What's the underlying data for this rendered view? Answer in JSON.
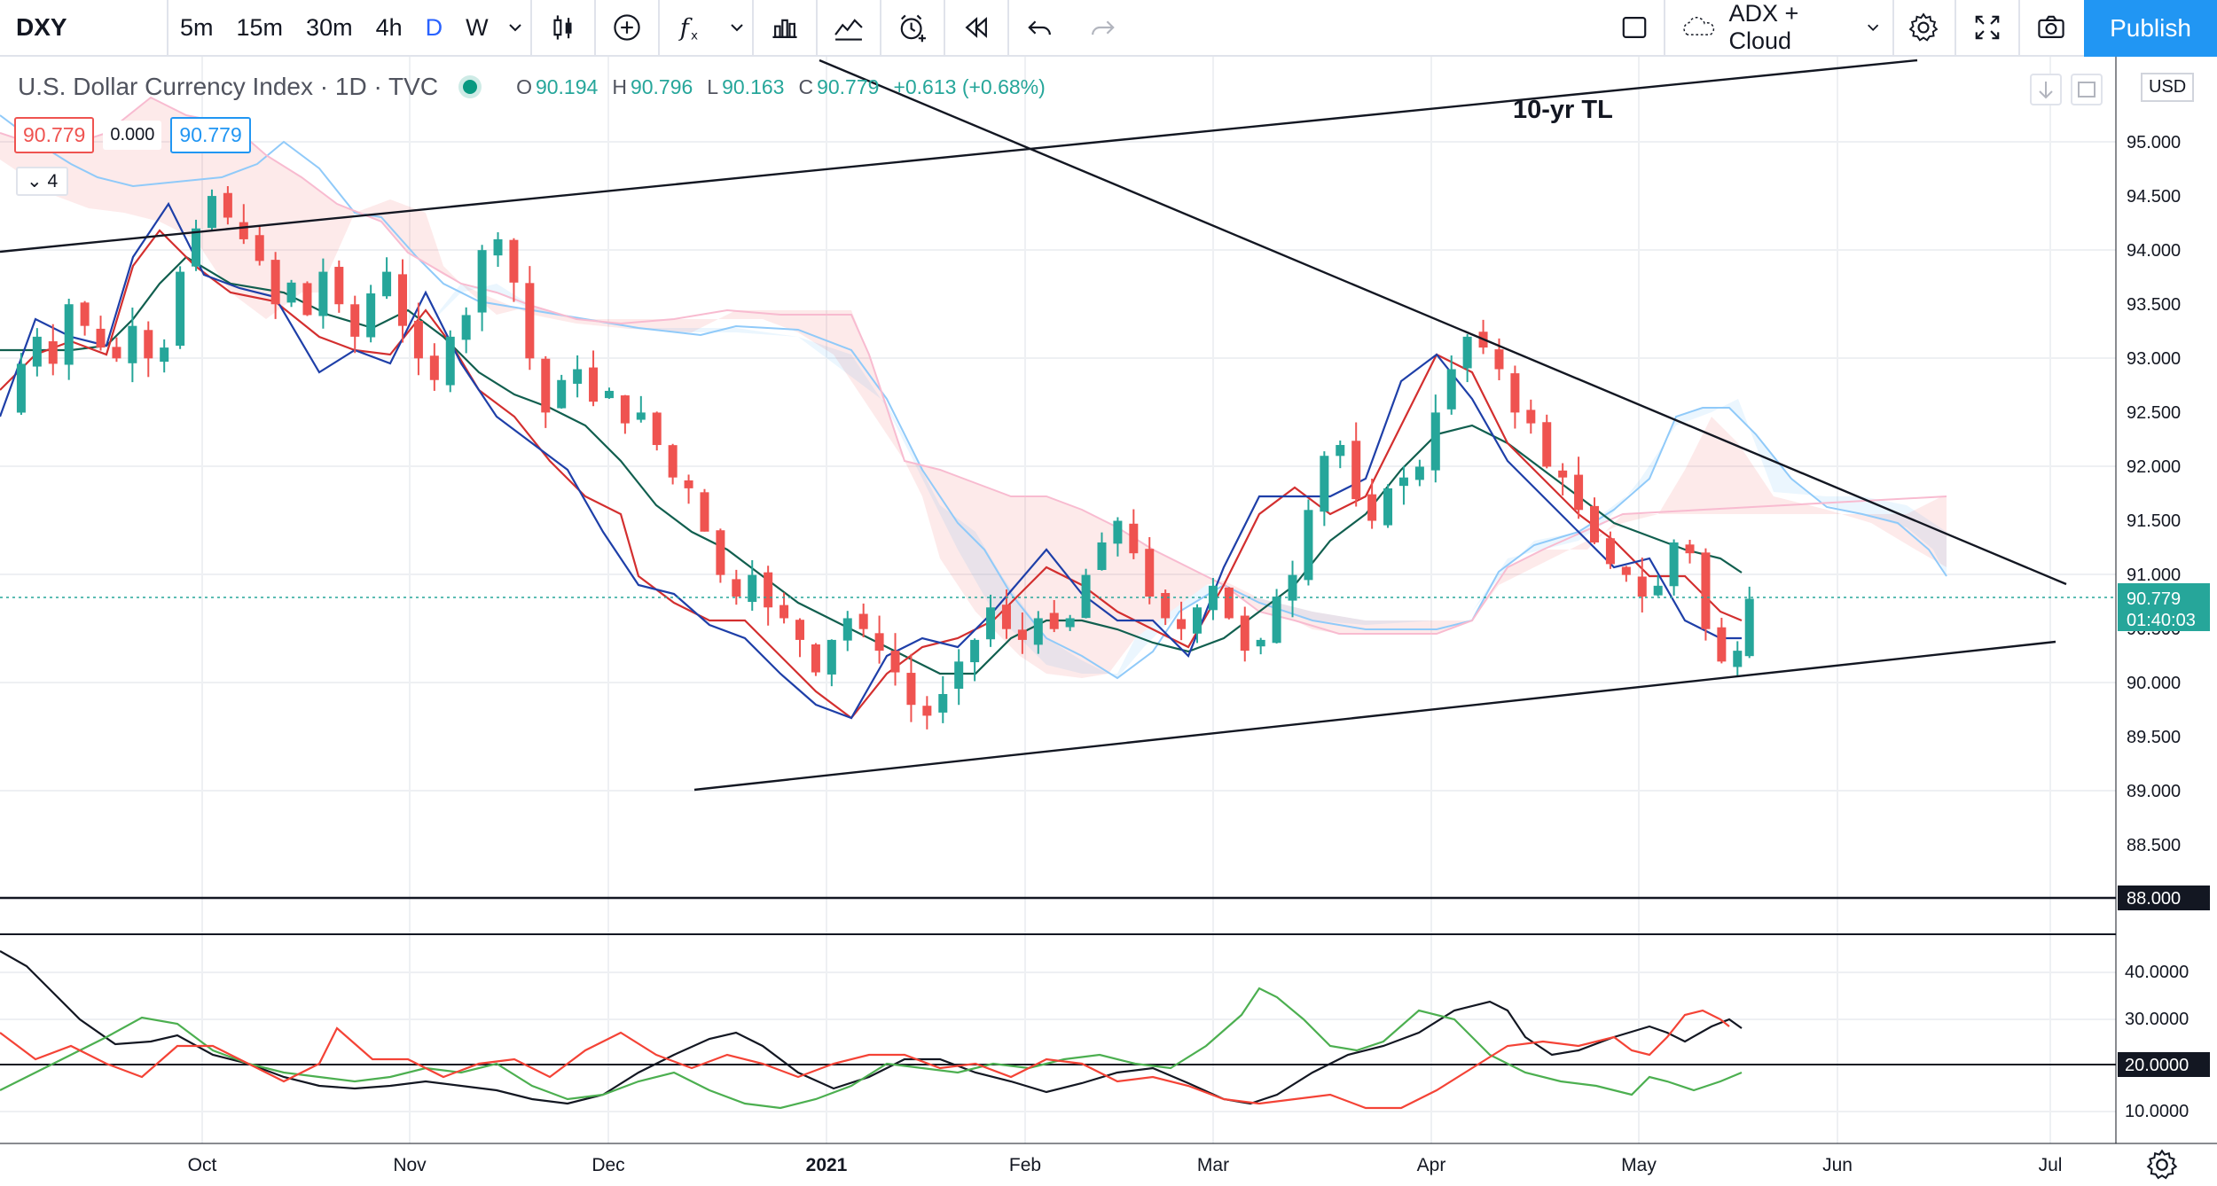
{
  "toolbar": {
    "symbol": "DXY",
    "intervals": [
      "5m",
      "15m",
      "30m",
      "4h",
      "D",
      "W"
    ],
    "active_interval": "D",
    "indicator_template": "ADX + Cloud",
    "publish_label": "Publish"
  },
  "legend": {
    "title": "U.S. Dollar Currency Index · 1D · TVC",
    "open_label": "O",
    "open": "90.194",
    "high_label": "H",
    "high": "90.796",
    "low_label": "L",
    "low": "90.163",
    "close_label": "C",
    "close": "90.779",
    "change": "+0.613 (+0.68%)",
    "bid": "90.779",
    "spread": "0.000",
    "ask": "90.779",
    "collapsed_count": "4"
  },
  "annotation_label": "10-yr TL",
  "price_axis": {
    "currency": "USD",
    "ticks": [
      "95.000",
      "94.500",
      "94.000",
      "93.500",
      "93.000",
      "92.500",
      "92.000",
      "91.500",
      "91.000",
      "90.500",
      "90.000",
      "89.500",
      "89.000",
      "88.500"
    ],
    "last_price": "90.779",
    "countdown": "01:40:03",
    "level_88": "88.000"
  },
  "adx_axis": {
    "ticks": [
      "40.0000",
      "30.0000",
      "10.0000"
    ],
    "level_20": "20.0000"
  },
  "time_axis": [
    "Oct",
    "Nov",
    "Dec",
    "2021",
    "Feb",
    "Mar",
    "Apr",
    "May",
    "Jun",
    "Jul"
  ],
  "colors": {
    "up": "#26a69a",
    "down": "#ef5350",
    "accent": "#2962ff",
    "publish": "#2196f3"
  },
  "chart_data": {
    "type": "candlestick",
    "title": "U.S. Dollar Currency Index · 1D · TVC",
    "ylim": [
      88.0,
      95.5
    ],
    "price_points": [
      [
        0,
        92.5
      ],
      [
        8,
        92.95
      ],
      [
        16,
        93.2
      ],
      [
        24,
        92.95
      ],
      [
        32,
        93.5
      ],
      [
        40,
        93.3
      ],
      [
        48,
        93.1
      ],
      [
        56,
        93.0
      ],
      [
        64,
        93.3
      ],
      [
        72,
        93.0
      ],
      [
        80,
        93.1
      ],
      [
        88,
        93.8
      ],
      [
        96,
        94.2
      ],
      [
        104,
        94.5
      ],
      [
        112,
        94.3
      ],
      [
        120,
        94.1
      ],
      [
        128,
        93.9
      ],
      [
        136,
        93.5
      ],
      [
        144,
        93.7
      ],
      [
        152,
        93.4
      ],
      [
        160,
        93.8
      ],
      [
        168,
        93.5
      ],
      [
        176,
        93.2
      ],
      [
        184,
        93.6
      ],
      [
        192,
        93.8
      ],
      [
        200,
        93.3
      ],
      [
        208,
        93.0
      ],
      [
        216,
        92.8
      ],
      [
        224,
        93.2
      ],
      [
        232,
        93.4
      ],
      [
        240,
        94.0
      ],
      [
        248,
        94.1
      ],
      [
        256,
        93.7
      ],
      [
        264,
        93.0
      ],
      [
        272,
        92.5
      ],
      [
        280,
        92.8
      ],
      [
        288,
        92.9
      ],
      [
        296,
        92.6
      ],
      [
        304,
        92.7
      ],
      [
        312,
        92.4
      ],
      [
        320,
        92.5
      ],
      [
        328,
        92.2
      ],
      [
        336,
        91.9
      ],
      [
        344,
        91.8
      ],
      [
        352,
        91.4
      ],
      [
        360,
        91.0
      ],
      [
        368,
        90.8
      ],
      [
        376,
        91.0
      ],
      [
        384,
        90.7
      ],
      [
        392,
        90.6
      ],
      [
        400,
        90.4
      ],
      [
        408,
        90.1
      ],
      [
        416,
        90.4
      ],
      [
        424,
        90.6
      ],
      [
        432,
        90.5
      ],
      [
        440,
        90.3
      ],
      [
        448,
        90.1
      ],
      [
        456,
        89.8
      ],
      [
        464,
        89.7
      ],
      [
        472,
        89.9
      ],
      [
        480,
        90.2
      ],
      [
        488,
        90.4
      ],
      [
        496,
        90.7
      ],
      [
        504,
        90.5
      ],
      [
        512,
        90.4
      ],
      [
        520,
        90.6
      ],
      [
        528,
        90.5
      ],
      [
        536,
        90.6
      ],
      [
        544,
        91.0
      ],
      [
        552,
        91.3
      ],
      [
        560,
        91.5
      ],
      [
        568,
        91.2
      ],
      [
        576,
        90.8
      ],
      [
        584,
        90.6
      ],
      [
        592,
        90.5
      ],
      [
        600,
        90.7
      ],
      [
        608,
        90.9
      ],
      [
        616,
        90.6
      ],
      [
        624,
        90.3
      ],
      [
        632,
        90.4
      ],
      [
        640,
        90.8
      ],
      [
        648,
        91.0
      ],
      [
        656,
        91.6
      ],
      [
        664,
        92.1
      ],
      [
        672,
        92.2
      ],
      [
        680,
        91.7
      ],
      [
        688,
        91.5
      ],
      [
        696,
        91.8
      ],
      [
        704,
        91.9
      ],
      [
        712,
        92.0
      ],
      [
        720,
        92.5
      ],
      [
        728,
        92.9
      ],
      [
        736,
        93.2
      ],
      [
        744,
        93.1
      ],
      [
        752,
        92.9
      ],
      [
        760,
        92.5
      ],
      [
        768,
        92.4
      ],
      [
        776,
        92.0
      ],
      [
        784,
        91.9
      ],
      [
        792,
        91.6
      ],
      [
        800,
        91.3
      ],
      [
        808,
        91.1
      ],
      [
        816,
        91.0
      ],
      [
        824,
        90.8
      ],
      [
        832,
        90.9
      ],
      [
        840,
        91.3
      ],
      [
        848,
        91.2
      ],
      [
        856,
        90.5
      ],
      [
        864,
        90.2
      ],
      [
        872,
        90.3
      ],
      [
        878,
        90.78
      ]
    ],
    "adx_ylim": [
      5,
      45
    ],
    "reference_levels": [
      88.0,
      20.0
    ]
  }
}
